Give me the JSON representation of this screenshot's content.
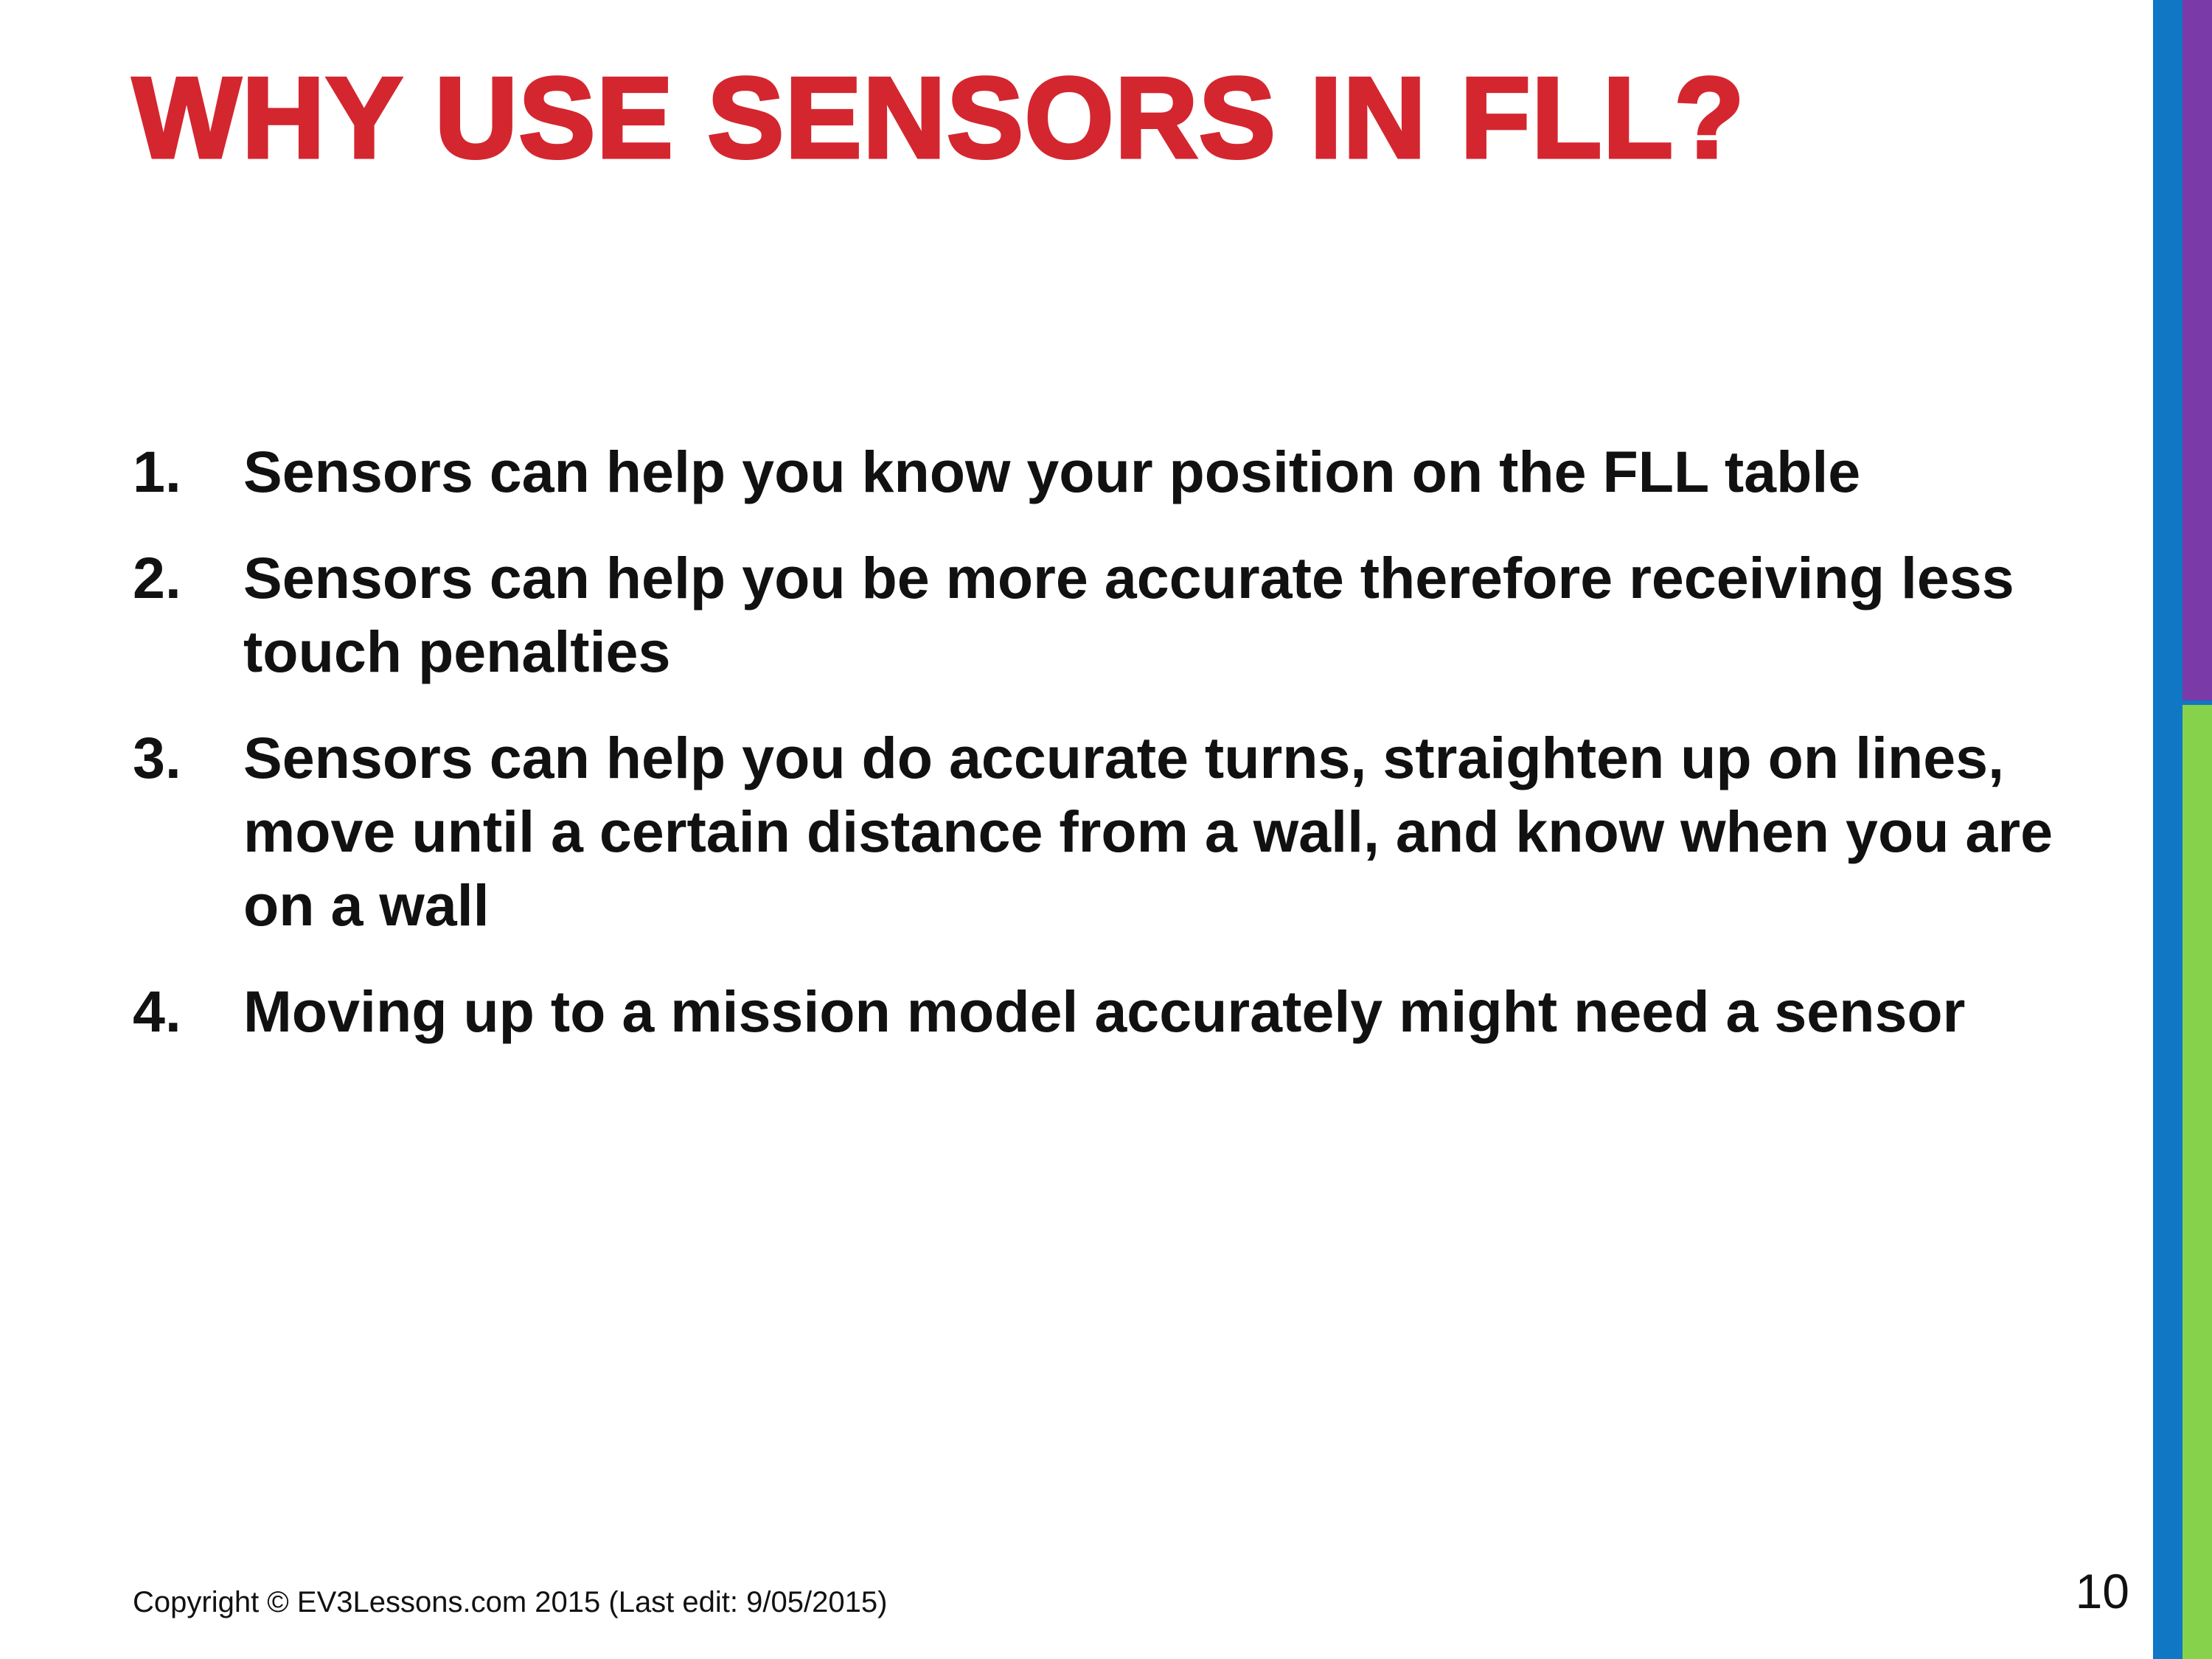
{
  "slide": {
    "title": "WHY USE SENSORS IN FLL?",
    "items": [
      {
        "number": "1.",
        "text": "Sensors can help you know your position on the FLL table"
      },
      {
        "number": "2.",
        "text": "Sensors can help you be more accurate therefore receiving less touch penalties"
      },
      {
        "number": "3.",
        "text": "Sensors can help you do accurate turns, straighten up on lines, move until a certain distance from a wall, and know when you are on a wall"
      },
      {
        "number": "4.",
        "text": "Moving up to a mission model accurately might need a sensor"
      }
    ],
    "footer": "Copyright © EV3Lessons.com 2015 (Last edit: 9/05/2015)",
    "page_number": "10"
  },
  "colors": {
    "title": "#d4262f",
    "bar_blue": "#0f77c4",
    "bar_purple": "#7a3aa8",
    "bar_green": "#86d24a"
  }
}
